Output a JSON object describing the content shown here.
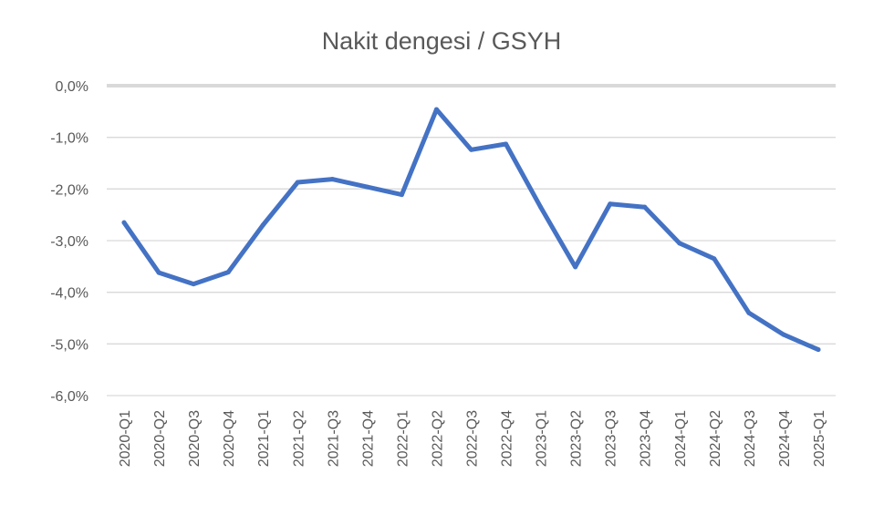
{
  "chart_data": {
    "type": "line",
    "title": "Nakit dengesi / GSYH",
    "xlabel": "",
    "ylabel": "",
    "ylim": [
      -6.0,
      0.0
    ],
    "yticks": [
      0.0,
      -1.0,
      -2.0,
      -3.0,
      -4.0,
      -5.0,
      -6.0
    ],
    "ytick_labels": [
      "0,0%",
      "-1,0%",
      "-2,0%",
      "-3,0%",
      "-4,0%",
      "-5,0%",
      "-6,0%"
    ],
    "grid": true,
    "legend": "none",
    "categories": [
      "2020-Q1",
      "2020-Q2",
      "2020-Q3",
      "2020-Q4",
      "2021-Q1",
      "2021-Q2",
      "2021-Q3",
      "2021-Q4",
      "2022-Q1",
      "2022-Q2",
      "2022-Q3",
      "2022-Q4",
      "2023-Q1",
      "2023-Q2",
      "2023-Q3",
      "2023-Q4",
      "2024-Q1",
      "2024-Q2",
      "2024-Q3",
      "2024-Q4",
      "2025-Q1"
    ],
    "series": [
      {
        "values": [
          -2.65,
          -3.62,
          -3.84,
          -3.61,
          -2.7,
          -1.87,
          -1.81,
          -1.96,
          -2.11,
          -0.46,
          -1.24,
          -1.13,
          -2.35,
          -3.51,
          -2.29,
          -2.35,
          -3.05,
          -3.35,
          -4.4,
          -4.82,
          -5.11
        ],
        "color": "#4472C4"
      }
    ],
    "colors": {
      "line": "#4472C4",
      "grid": "#d9d9d9",
      "zero_line": "#d9d9d9",
      "text": "#595959"
    }
  }
}
